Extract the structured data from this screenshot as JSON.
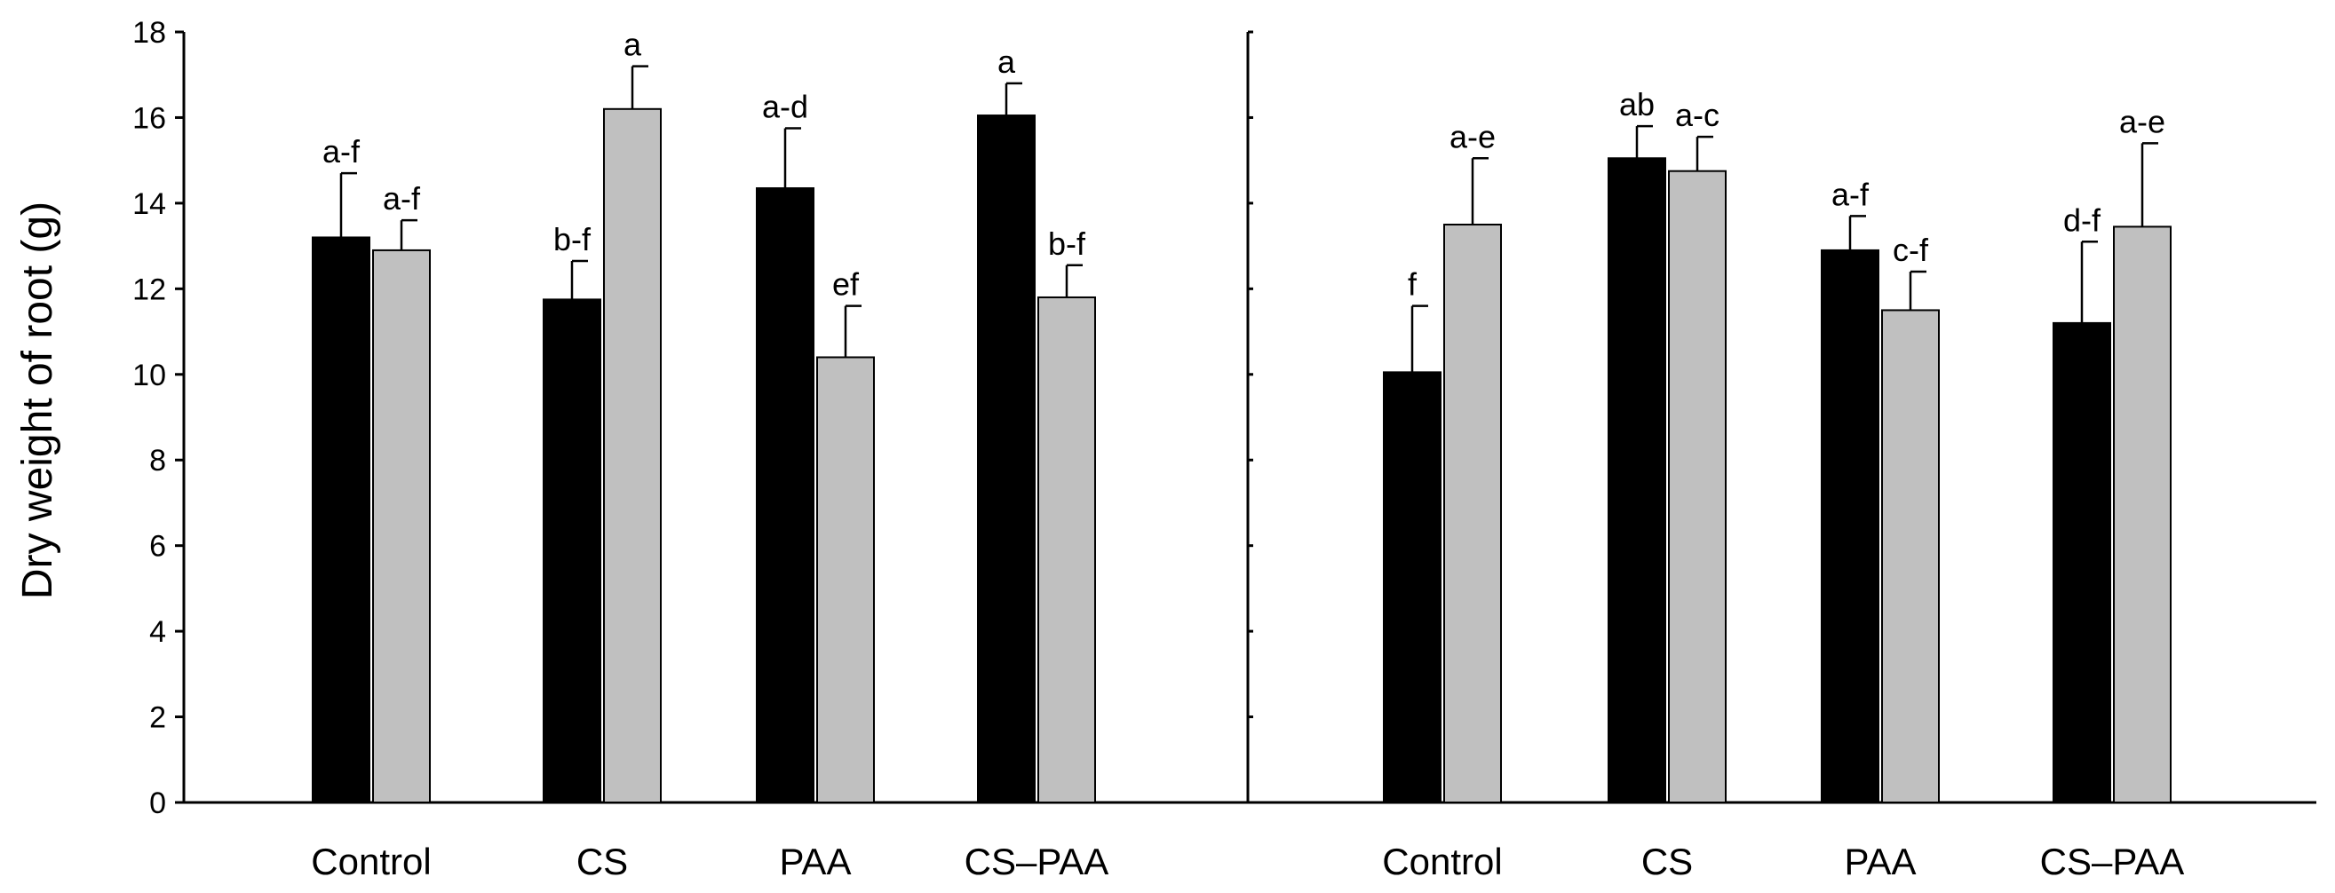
{
  "chart_data": {
    "type": "bar",
    "ylabel": "Dry weight of root (g)",
    "ylim": [
      0,
      18
    ],
    "yticks": [
      0,
      2,
      4,
      6,
      8,
      10,
      12,
      14,
      16,
      18
    ],
    "tick_labels": [
      "0",
      "2",
      "4",
      "6",
      "8",
      "10",
      "12",
      "14",
      "16",
      "18"
    ],
    "series_colors": [
      "#000000",
      "#c0c0c0"
    ],
    "panels": [
      {
        "name": "left",
        "categories": [
          "Control",
          "CS",
          "PAA",
          "CS–PAA"
        ],
        "series": [
          {
            "name": "black",
            "values": [
              13.2,
              11.75,
              14.35,
              16.05
            ],
            "errors": [
              1.5,
              0.9,
              1.4,
              0.75
            ],
            "letters": [
              "a-f",
              "b-f",
              "a-d",
              "a"
            ]
          },
          {
            "name": "gray",
            "values": [
              12.9,
              16.2,
              10.4,
              11.8
            ],
            "errors": [
              0.7,
              1.0,
              1.2,
              0.75
            ],
            "letters": [
              "a-f",
              "a",
              "ef",
              "b-f"
            ]
          }
        ]
      },
      {
        "name": "right",
        "categories": [
          "Control",
          "CS",
          "PAA",
          "CS–PAA"
        ],
        "series": [
          {
            "name": "black",
            "values": [
              10.05,
              15.05,
              12.9,
              11.2
            ],
            "errors": [
              1.55,
              0.75,
              0.8,
              1.9
            ],
            "letters": [
              "f",
              "ab",
              "a-f",
              "d-f"
            ]
          },
          {
            "name": "gray",
            "values": [
              13.5,
              14.75,
              11.5,
              13.45
            ],
            "errors": [
              1.55,
              0.8,
              0.9,
              1.95
            ],
            "letters": [
              "a-e",
              "a-c",
              "c-f",
              "a-e"
            ]
          }
        ]
      }
    ]
  }
}
